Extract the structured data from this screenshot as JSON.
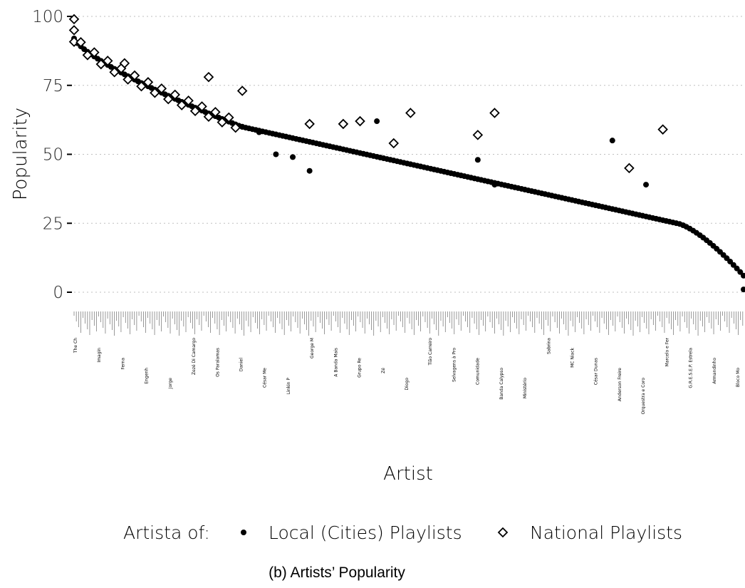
{
  "chart_data": {
    "type": "scatter",
    "title": "",
    "xlabel": "Artist",
    "ylabel": "Popularity",
    "ylim": [
      0,
      100
    ],
    "yticks": [
      0,
      25,
      50,
      75,
      100
    ],
    "grid": "horizontal dotted",
    "legend_position": "bottom",
    "legend_title": "Artista of:",
    "series": [
      {
        "name": "Local (Cities) Playlists",
        "marker": "filled-circle",
        "shape": "descending curve covering all artists"
      },
      {
        "name": "National Playlists",
        "marker": "hollow-diamond",
        "shape": "top-ranked artists"
      }
    ],
    "local_outliers": [
      [
        50,
        60
      ],
      [
        55,
        58
      ],
      [
        60,
        50
      ],
      [
        65,
        49
      ],
      [
        70,
        44
      ],
      [
        120,
        48
      ],
      [
        125,
        39
      ],
      [
        160,
        55
      ],
      [
        170,
        39
      ],
      [
        90,
        62
      ]
    ],
    "national_outliers": [
      [
        15,
        83
      ],
      [
        40,
        78
      ],
      [
        50,
        73
      ],
      [
        70,
        61
      ],
      [
        80,
        61
      ],
      [
        85,
        62
      ],
      [
        95,
        54
      ],
      [
        100,
        65
      ],
      [
        120,
        57
      ],
      [
        125,
        65
      ],
      [
        165,
        45
      ],
      [
        175,
        59
      ]
    ],
    "x_tick_labels_legible": [
      "The Ch",
      "Imagin",
      "Ferna",
      "Engenh",
      "Jorge",
      "Zezé Di Camargo",
      "Os Paralamas",
      "Daniel",
      "César Me",
      "Linkin P",
      "George M",
      "A Banda Mais",
      "Grupo Re",
      "Zé",
      "Diogo",
      "Tião Carreiro",
      "Selvagens à Pro",
      "Comunidade",
      "Banda Calypso",
      "Ministério",
      "Sabrina",
      "MC Niack",
      "César Dunas",
      "Anderson Freire",
      "Orquestra e Coro",
      "Marcelo e Fer",
      "G.R.E.S.E.P. Estrela",
      "Armandinho",
      "Bloco Mo"
    ]
  },
  "caption": "(b) Artists’ Popularity"
}
